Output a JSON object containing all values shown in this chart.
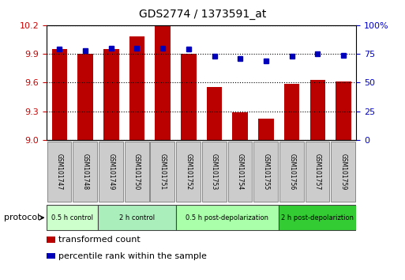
{
  "title": "GDS2774 / 1373591_at",
  "samples": [
    "GSM101747",
    "GSM101748",
    "GSM101749",
    "GSM101750",
    "GSM101751",
    "GSM101752",
    "GSM101753",
    "GSM101754",
    "GSM101755",
    "GSM101756",
    "GSM101757",
    "GSM101759"
  ],
  "transformed_count": [
    9.95,
    9.9,
    9.95,
    10.08,
    10.2,
    9.9,
    9.55,
    9.29,
    9.22,
    9.59,
    9.63,
    9.61
  ],
  "percentile_rank": [
    79,
    78,
    80,
    80,
    80,
    79,
    73,
    71,
    69,
    73,
    75,
    74
  ],
  "ymin": 9.0,
  "ymax": 10.2,
  "y_ticks": [
    9.0,
    9.3,
    9.6,
    9.9,
    10.2
  ],
  "y2min": 0,
  "y2max": 100,
  "y2_ticks": [
    0,
    25,
    50,
    75,
    100
  ],
  "bar_color": "#bb0000",
  "dot_color": "#0000bb",
  "bar_width": 0.6,
  "sample_box_color": "#cccccc",
  "protocols": [
    {
      "label": "0.5 h control",
      "start": 0,
      "end": 2,
      "color": "#ccffcc"
    },
    {
      "label": "2 h control",
      "start": 2,
      "end": 5,
      "color": "#aaeebb"
    },
    {
      "label": "0.5 h post-depolarization",
      "start": 5,
      "end": 9,
      "color": "#aaffaa"
    },
    {
      "label": "2 h post-depolariztion",
      "start": 9,
      "end": 12,
      "color": "#33cc33"
    }
  ],
  "legend_items": [
    {
      "label": "transformed count",
      "color": "#bb0000"
    },
    {
      "label": "percentile rank within the sample",
      "color": "#0000bb"
    }
  ],
  "ylabel_left_color": "#cc0000",
  "ylabel_right_color": "#0000cc",
  "background_color": "#ffffff"
}
